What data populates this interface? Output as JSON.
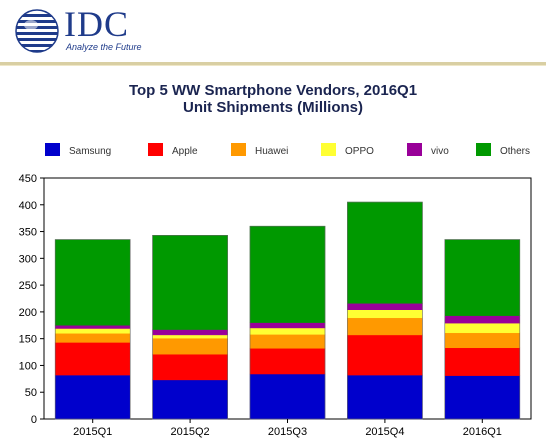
{
  "brand": {
    "name": "IDC",
    "tagline": "Analyze the Future"
  },
  "chart_data": {
    "type": "bar",
    "stacked": true,
    "title": "Top 5 WW Smartphone Vendors, 2016Q1",
    "subtitle": "Unit Shipments (Millions)",
    "categories": [
      "2015Q1",
      "2015Q2",
      "2015Q3",
      "2015Q4",
      "2016Q1"
    ],
    "series": [
      {
        "name": "Samsung",
        "color": "#0000cc",
        "values": [
          82,
          73,
          84,
          82,
          81
        ]
      },
      {
        "name": "Apple",
        "color": "#ff0000",
        "values": [
          61,
          48,
          48,
          75,
          52
        ]
      },
      {
        "name": "Huawei",
        "color": "#ff9900",
        "values": [
          17,
          30,
          26,
          32,
          28
        ]
      },
      {
        "name": "OPPO",
        "color": "#ffff33",
        "values": [
          9,
          6,
          12,
          15,
          18
        ]
      },
      {
        "name": "vivo",
        "color": "#990099",
        "values": [
          6,
          10,
          10,
          12,
          14
        ]
      },
      {
        "name": "Others",
        "color": "#009900",
        "values": [
          160,
          176,
          180,
          189,
          142
        ]
      }
    ],
    "ylim": [
      0,
      450
    ],
    "yticks": [
      "0",
      "50",
      "100",
      "150",
      "200",
      "250",
      "300",
      "350",
      "400",
      "450"
    ],
    "grid": false,
    "legend_position": "top"
  }
}
